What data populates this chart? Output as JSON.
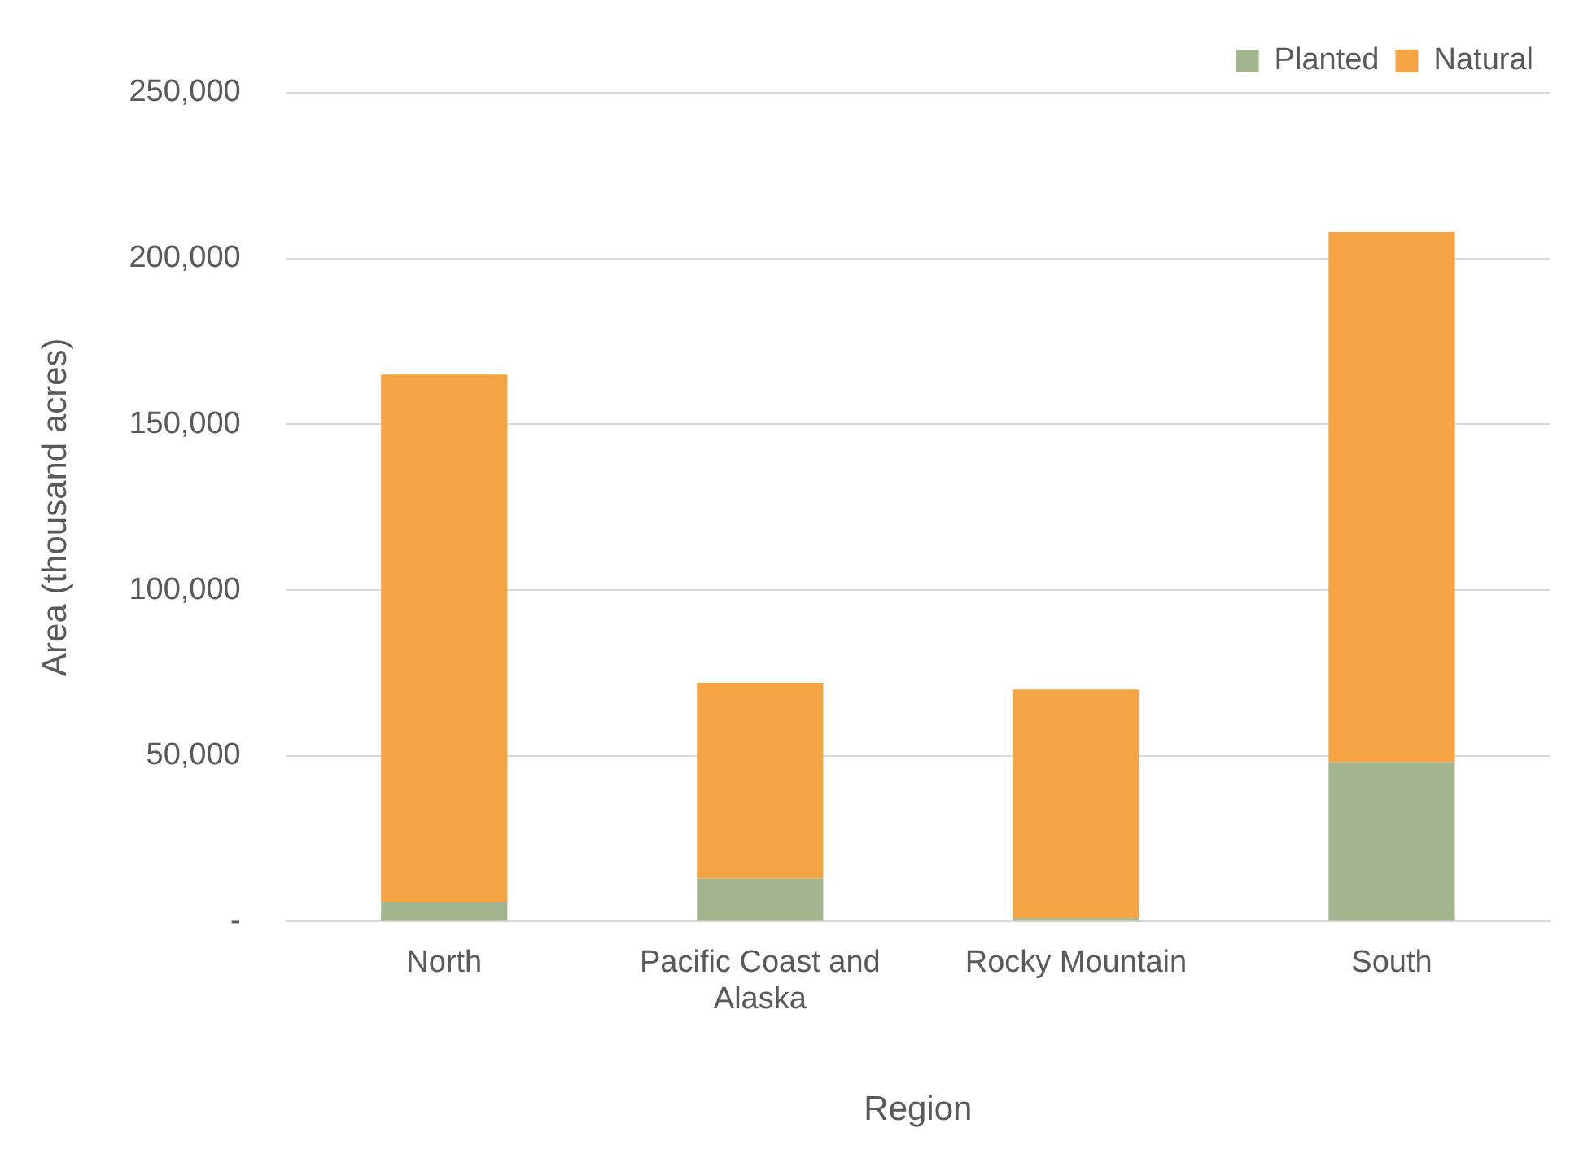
{
  "chart_data": {
    "type": "bar",
    "xlabel": "Region",
    "ylabel": "Area (thousand acres)",
    "categories": [
      "North",
      "Pacific Coast and Alaska",
      "Rocky Mountain",
      "South"
    ],
    "series": [
      {
        "name": "Planted",
        "color": "#a3b58f",
        "values": [
          6000,
          13000,
          1000,
          48000
        ]
      },
      {
        "name": "Natural",
        "color": "#f4a443",
        "values": [
          159000,
          59000,
          69000,
          160000
        ]
      }
    ],
    "stacked": true,
    "ylim": [
      0,
      250000
    ],
    "yticks": [
      {
        "value": 0,
        "label": "-"
      },
      {
        "value": 50000,
        "label": "50,000"
      },
      {
        "value": 100000,
        "label": "100,000"
      },
      {
        "value": 150000,
        "label": "150,000"
      },
      {
        "value": 200000,
        "label": "200,000"
      },
      {
        "value": 250000,
        "label": "250,000"
      }
    ],
    "grid": "y",
    "legend": "top right"
  }
}
